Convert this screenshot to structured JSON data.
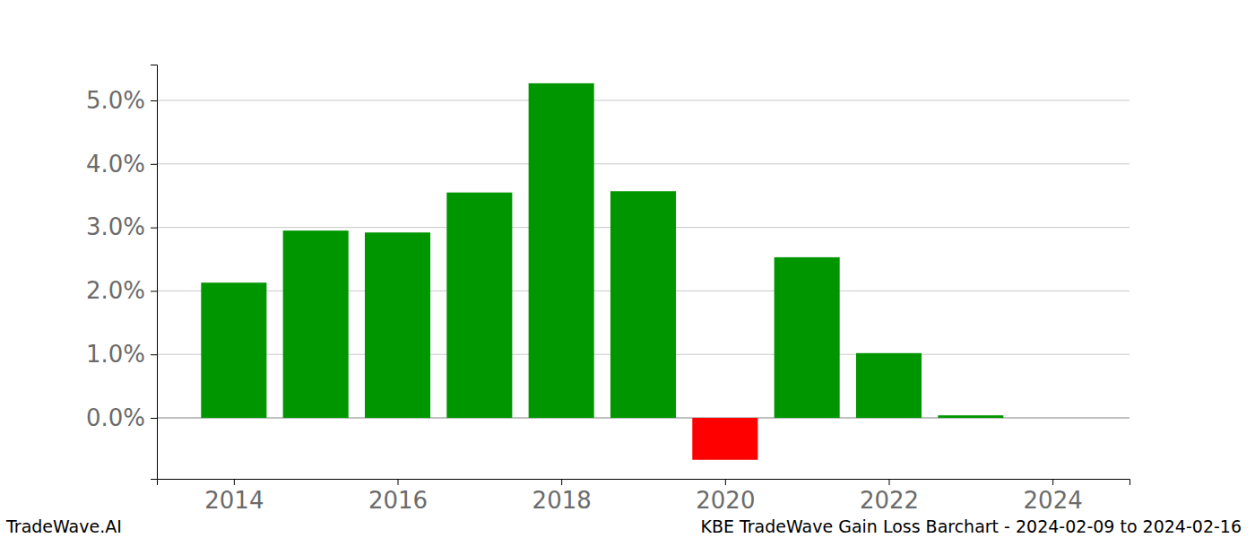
{
  "chart_data": {
    "type": "bar",
    "title": "KBE TradeWave Gain Loss Barchart - 2024-02-09 to 2024-02-16",
    "annotations": [
      "TradeWave.AI"
    ],
    "x": [
      2014,
      2015,
      2016,
      2017,
      2018,
      2019,
      2020,
      2021,
      2022,
      2023,
      2024
    ],
    "values": [
      2.13,
      2.95,
      2.92,
      3.55,
      5.27,
      3.57,
      -0.66,
      2.53,
      1.02,
      0.04,
      0
    ],
    "colors": [
      "#009600",
      "#009600",
      "#009600",
      "#009600",
      "#009600",
      "#009600",
      "#ff0000",
      "#009600",
      "#009600",
      "#009600",
      "#009600"
    ],
    "xlim": [
      2013.06,
      2024.94
    ],
    "xticks": [
      2014,
      2016,
      2018,
      2020,
      2022,
      2024
    ],
    "ylim": [
      -0.96,
      5.565
    ],
    "yticks": [
      {
        "value": 0,
        "label": "0.0%"
      },
      {
        "value": 1,
        "label": "1.0%"
      },
      {
        "value": 2,
        "label": "2.0%"
      },
      {
        "value": 3,
        "label": "3.0%"
      },
      {
        "value": 4,
        "label": "4.0%"
      },
      {
        "value": 5,
        "label": "5.0%"
      }
    ],
    "grid": true
  }
}
